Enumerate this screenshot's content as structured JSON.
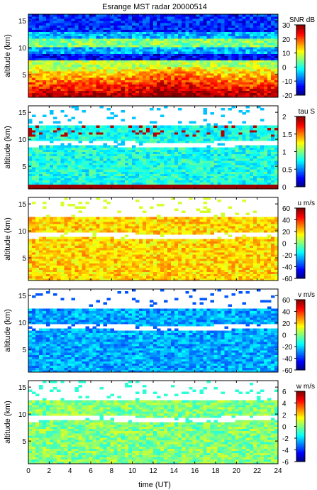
{
  "chart_data": {
    "type": "heatmap",
    "title": "Esrange MST radar 20000514",
    "xlabel": "time (UT)",
    "xlim": [
      0,
      24
    ],
    "x_ticks": [
      0,
      2,
      4,
      6,
      8,
      10,
      12,
      14,
      16,
      18,
      20,
      22,
      24
    ],
    "panels": [
      {
        "name": "snr",
        "ylabel": "altitude (km)",
        "ylim": [
          0.8,
          16.2
        ],
        "y_ticks": [
          5,
          10,
          15
        ],
        "colorbar_label": "SNR dB",
        "clim": [
          -20,
          30
        ],
        "colorbar_ticks": [
          30,
          20,
          10,
          0,
          -10,
          -20
        ],
        "colormap": "jet",
        "coverage": "full",
        "description_values": {
          "low_altitude_snr_db": 25,
          "upper_background_snr_db": -5
        }
      },
      {
        "name": "tau",
        "ylabel": "altitude (km)",
        "ylim": [
          0.8,
          16.2
        ],
        "y_ticks": [
          5,
          10,
          15
        ],
        "colorbar_label": "tau S",
        "clim": [
          0,
          2
        ],
        "colorbar_ticks": [
          2,
          1.5,
          1,
          0.5,
          0
        ],
        "colormap": "jet",
        "coverage": "echo-regions",
        "typical_value": 0.8
      },
      {
        "name": "u",
        "ylabel": "altitude (km)",
        "ylim": [
          0.8,
          16.2
        ],
        "y_ticks": [
          5,
          10,
          15
        ],
        "colorbar_label": "u m/s",
        "clim": [
          -60,
          60
        ],
        "colorbar_ticks": [
          60,
          40,
          20,
          0,
          -20,
          -40,
          -60
        ],
        "colormap": "jet",
        "coverage": "echo-regions",
        "typical_value": 20
      },
      {
        "name": "v",
        "ylabel": "altitude (km)",
        "ylim": [
          0.8,
          16.2
        ],
        "y_ticks": [
          5,
          10,
          15
        ],
        "colorbar_label": "v m/s",
        "clim": [
          -60,
          60
        ],
        "colorbar_ticks": [
          60,
          40,
          20,
          0,
          -20,
          -40,
          -60
        ],
        "colormap": "jet",
        "coverage": "echo-regions",
        "typical_value": -25
      },
      {
        "name": "w",
        "ylabel": "altitude (km)",
        "ylim": [
          0.8,
          16.2
        ],
        "y_ticks": [
          5,
          10,
          15
        ],
        "colorbar_label": "w m/s",
        "clim": [
          -6,
          6
        ],
        "colorbar_ticks": [
          6,
          4,
          2,
          0,
          -2,
          -4,
          -6
        ],
        "colormap": "jet",
        "coverage": "echo-regions",
        "typical_value": 0
      }
    ],
    "grid": false
  }
}
